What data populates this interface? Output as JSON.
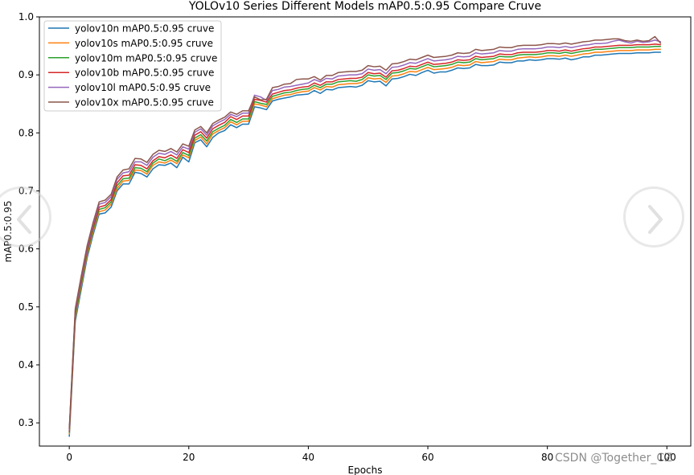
{
  "chart_data": {
    "type": "line",
    "title": "YOLOv10 Series Different Models mAP0.5:0.95 Compare Cruve",
    "xlabel": "Epochs",
    "ylabel": "mAP0.5:0.95",
    "xlim": [
      -5,
      104
    ],
    "ylim": [
      0.26,
      1.0
    ],
    "xticks": [
      0,
      20,
      40,
      60,
      80,
      100
    ],
    "yticks": [
      0.3,
      0.4,
      0.5,
      0.6,
      0.7,
      0.8,
      0.9,
      1.0
    ],
    "grid": false,
    "legend_position": "upper-left",
    "x": [
      0,
      1,
      2,
      3,
      4,
      5,
      6,
      7,
      8,
      9,
      10,
      11,
      12,
      13,
      14,
      15,
      16,
      17,
      18,
      19,
      20,
      21,
      22,
      23,
      24,
      25,
      26,
      27,
      28,
      29,
      30,
      31,
      32,
      33,
      34,
      35,
      36,
      37,
      38,
      39,
      40,
      41,
      42,
      43,
      44,
      45,
      46,
      47,
      48,
      49,
      50,
      51,
      52,
      53,
      54,
      55,
      56,
      57,
      58,
      59,
      60,
      61,
      62,
      63,
      64,
      65,
      66,
      67,
      68,
      69,
      70,
      71,
      72,
      73,
      74,
      75,
      76,
      77,
      78,
      79,
      80,
      81,
      82,
      83,
      84,
      85,
      86,
      87,
      88,
      89,
      90,
      91,
      92,
      93,
      94,
      95,
      96,
      97,
      98,
      99
    ],
    "series": [
      {
        "name": "yolov10n mAP0.5:0.95 cruve",
        "color": "#1f77b4",
        "values": [
          0.276,
          0.475,
          0.53,
          0.585,
          0.625,
          0.66,
          0.662,
          0.672,
          0.7,
          0.712,
          0.712,
          0.732,
          0.73,
          0.724,
          0.738,
          0.745,
          0.744,
          0.748,
          0.74,
          0.758,
          0.75,
          0.783,
          0.788,
          0.776,
          0.792,
          0.8,
          0.804,
          0.814,
          0.809,
          0.815,
          0.815,
          0.845,
          0.843,
          0.84,
          0.855,
          0.858,
          0.86,
          0.862,
          0.865,
          0.866,
          0.867,
          0.873,
          0.868,
          0.875,
          0.874,
          0.878,
          0.879,
          0.88,
          0.879,
          0.882,
          0.89,
          0.888,
          0.889,
          0.881,
          0.893,
          0.894,
          0.897,
          0.901,
          0.899,
          0.904,
          0.908,
          0.903,
          0.905,
          0.905,
          0.908,
          0.912,
          0.911,
          0.912,
          0.918,
          0.916,
          0.916,
          0.917,
          0.922,
          0.921,
          0.921,
          0.924,
          0.924,
          0.926,
          0.925,
          0.926,
          0.928,
          0.928,
          0.927,
          0.929,
          0.926,
          0.928,
          0.931,
          0.931,
          0.934,
          0.934,
          0.935,
          0.936,
          0.937,
          0.937,
          0.937,
          0.938,
          0.938,
          0.938,
          0.939,
          0.939
        ]
      },
      {
        "name": "yolov10s mAP0.5:0.95 cruve",
        "color": "#ff7f0e",
        "values": [
          0.28,
          0.48,
          0.536,
          0.59,
          0.63,
          0.664,
          0.667,
          0.677,
          0.704,
          0.717,
          0.718,
          0.736,
          0.735,
          0.729,
          0.744,
          0.75,
          0.748,
          0.753,
          0.747,
          0.762,
          0.757,
          0.787,
          0.793,
          0.781,
          0.798,
          0.804,
          0.809,
          0.819,
          0.814,
          0.82,
          0.82,
          0.85,
          0.848,
          0.845,
          0.859,
          0.862,
          0.865,
          0.866,
          0.869,
          0.871,
          0.872,
          0.878,
          0.874,
          0.88,
          0.879,
          0.883,
          0.884,
          0.885,
          0.885,
          0.887,
          0.895,
          0.893,
          0.894,
          0.887,
          0.898,
          0.899,
          0.902,
          0.906,
          0.905,
          0.909,
          0.913,
          0.909,
          0.91,
          0.911,
          0.913,
          0.917,
          0.916,
          0.917,
          0.923,
          0.921,
          0.922,
          0.923,
          0.927,
          0.926,
          0.926,
          0.929,
          0.93,
          0.931,
          0.93,
          0.931,
          0.933,
          0.933,
          0.932,
          0.934,
          0.932,
          0.934,
          0.936,
          0.937,
          0.939,
          0.939,
          0.94,
          0.941,
          0.942,
          0.942,
          0.942,
          0.943,
          0.943,
          0.943,
          0.944,
          0.944
        ]
      },
      {
        "name": "yolov10m mAP0.5:0.95 cruve",
        "color": "#2ca02c",
        "values": [
          0.283,
          0.484,
          0.54,
          0.594,
          0.634,
          0.668,
          0.671,
          0.681,
          0.709,
          0.721,
          0.722,
          0.74,
          0.739,
          0.733,
          0.748,
          0.755,
          0.752,
          0.757,
          0.751,
          0.766,
          0.761,
          0.791,
          0.797,
          0.786,
          0.802,
          0.808,
          0.813,
          0.823,
          0.818,
          0.824,
          0.824,
          0.854,
          0.851,
          0.849,
          0.863,
          0.866,
          0.869,
          0.87,
          0.873,
          0.875,
          0.876,
          0.882,
          0.878,
          0.884,
          0.884,
          0.888,
          0.889,
          0.89,
          0.889,
          0.892,
          0.9,
          0.898,
          0.899,
          0.892,
          0.903,
          0.904,
          0.907,
          0.911,
          0.91,
          0.914,
          0.918,
          0.914,
          0.915,
          0.916,
          0.918,
          0.922,
          0.921,
          0.922,
          0.928,
          0.926,
          0.927,
          0.928,
          0.932,
          0.931,
          0.931,
          0.934,
          0.935,
          0.935,
          0.935,
          0.936,
          0.938,
          0.938,
          0.937,
          0.939,
          0.937,
          0.939,
          0.941,
          0.942,
          0.944,
          0.944,
          0.945,
          0.946,
          0.947,
          0.947,
          0.947,
          0.948,
          0.948,
          0.948,
          0.949,
          0.949
        ]
      },
      {
        "name": "yolov10b mAP0.5:0.95 cruve",
        "color": "#d62728",
        "values": [
          0.285,
          0.49,
          0.545,
          0.598,
          0.638,
          0.672,
          0.675,
          0.685,
          0.714,
          0.726,
          0.727,
          0.745,
          0.744,
          0.738,
          0.752,
          0.759,
          0.757,
          0.762,
          0.756,
          0.771,
          0.766,
          0.796,
          0.802,
          0.791,
          0.807,
          0.813,
          0.818,
          0.828,
          0.823,
          0.829,
          0.829,
          0.858,
          0.856,
          0.853,
          0.867,
          0.87,
          0.873,
          0.874,
          0.877,
          0.879,
          0.88,
          0.886,
          0.882,
          0.888,
          0.888,
          0.892,
          0.893,
          0.894,
          0.894,
          0.896,
          0.904,
          0.902,
          0.903,
          0.896,
          0.907,
          0.908,
          0.911,
          0.915,
          0.914,
          0.918,
          0.922,
          0.918,
          0.919,
          0.92,
          0.922,
          0.926,
          0.925,
          0.926,
          0.932,
          0.93,
          0.931,
          0.932,
          0.936,
          0.935,
          0.935,
          0.938,
          0.939,
          0.939,
          0.939,
          0.94,
          0.942,
          0.942,
          0.941,
          0.943,
          0.941,
          0.943,
          0.945,
          0.946,
          0.948,
          0.948,
          0.949,
          0.95,
          0.951,
          0.951,
          0.951,
          0.952,
          0.952,
          0.952,
          0.953,
          0.952
        ]
      },
      {
        "name": "yolov10l mAP0.5:0.95 cruve",
        "color": "#9467bd",
        "values": [
          0.287,
          0.493,
          0.549,
          0.602,
          0.642,
          0.677,
          0.68,
          0.69,
          0.72,
          0.731,
          0.733,
          0.75,
          0.75,
          0.744,
          0.758,
          0.765,
          0.763,
          0.768,
          0.762,
          0.776,
          0.772,
          0.801,
          0.807,
          0.796,
          0.812,
          0.818,
          0.823,
          0.832,
          0.828,
          0.834,
          0.834,
          0.865,
          0.862,
          0.856,
          0.873,
          0.875,
          0.879,
          0.88,
          0.882,
          0.884,
          0.886,
          0.892,
          0.888,
          0.894,
          0.893,
          0.898,
          0.899,
          0.9,
          0.9,
          0.902,
          0.91,
          0.908,
          0.909,
          0.902,
          0.913,
          0.914,
          0.917,
          0.921,
          0.92,
          0.924,
          0.928,
          0.924,
          0.925,
          0.926,
          0.928,
          0.932,
          0.931,
          0.932,
          0.938,
          0.936,
          0.937,
          0.938,
          0.942,
          0.941,
          0.941,
          0.944,
          0.945,
          0.945,
          0.945,
          0.946,
          0.948,
          0.948,
          0.947,
          0.949,
          0.947,
          0.949,
          0.951,
          0.952,
          0.954,
          0.954,
          0.955,
          0.958,
          0.96,
          0.957,
          0.955,
          0.958,
          0.956,
          0.957,
          0.96,
          0.957
        ]
      },
      {
        "name": "yolov10x mAP0.5:0.95 cruve",
        "color": "#8c564b",
        "values": [
          0.289,
          0.497,
          0.553,
          0.606,
          0.646,
          0.681,
          0.684,
          0.694,
          0.724,
          0.736,
          0.738,
          0.756,
          0.755,
          0.749,
          0.763,
          0.77,
          0.768,
          0.773,
          0.767,
          0.781,
          0.777,
          0.805,
          0.811,
          0.8,
          0.816,
          0.822,
          0.827,
          0.836,
          0.832,
          0.838,
          0.838,
          0.862,
          0.857,
          0.858,
          0.878,
          0.88,
          0.884,
          0.885,
          0.892,
          0.893,
          0.893,
          0.897,
          0.891,
          0.899,
          0.899,
          0.904,
          0.905,
          0.906,
          0.906,
          0.908,
          0.916,
          0.914,
          0.915,
          0.908,
          0.919,
          0.92,
          0.923,
          0.927,
          0.926,
          0.93,
          0.934,
          0.93,
          0.931,
          0.932,
          0.934,
          0.938,
          0.937,
          0.938,
          0.944,
          0.942,
          0.943,
          0.944,
          0.948,
          0.947,
          0.947,
          0.95,
          0.951,
          0.951,
          0.951,
          0.952,
          0.954,
          0.954,
          0.953,
          0.955,
          0.953,
          0.955,
          0.957,
          0.958,
          0.96,
          0.96,
          0.961,
          0.962,
          0.962,
          0.959,
          0.958,
          0.96,
          0.958,
          0.959,
          0.966,
          0.954
        ]
      }
    ]
  },
  "watermark": "CSDN @Together_CZ",
  "nav": {
    "prev_icon": "chevron-left-icon",
    "next_icon": "chevron-right-icon"
  }
}
